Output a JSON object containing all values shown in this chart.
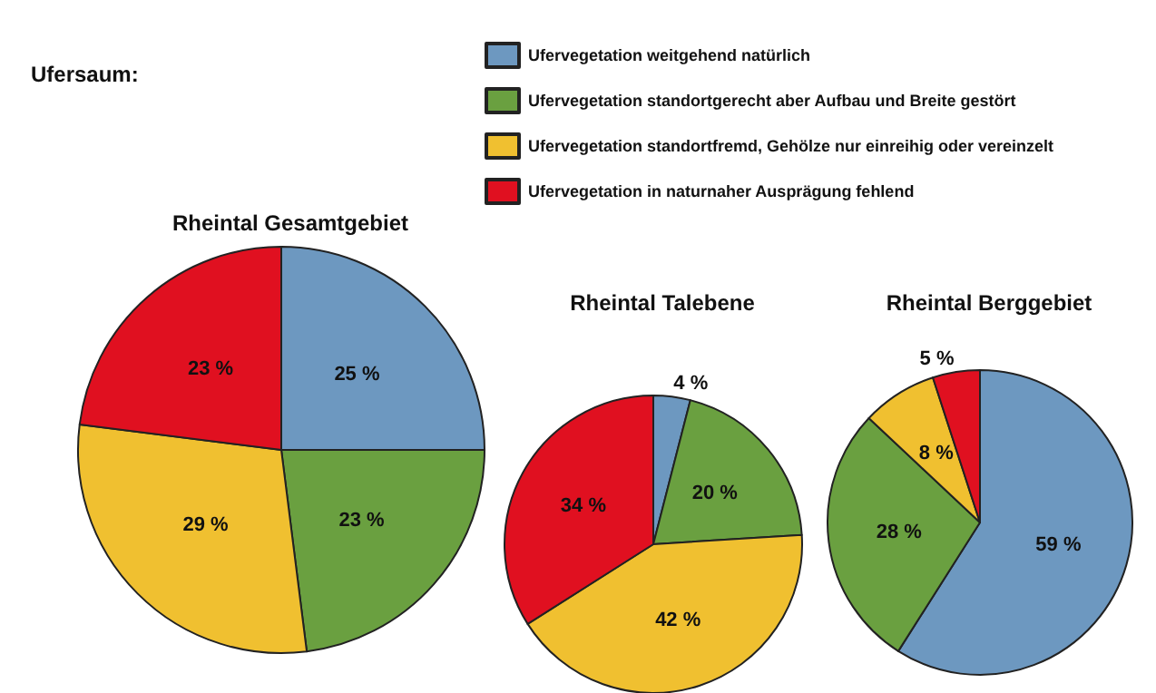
{
  "chart_data": [
    {
      "type": "pie",
      "title": "Rheintal Gesamtgebiet",
      "annotations": [
        "Ufersaum:"
      ],
      "legend": "top right",
      "categories": [
        "Ufervegetation weitgehend natürlich",
        "Ufervegetation standortgerecht aber Aufbau und Breite gestört",
        "Ufervegetation standortfremd, Gehölze nur einreihig oder vereinzelt",
        "Ufervegetation in naturnaher Ausprägung fehlend"
      ],
      "values": [
        25,
        23,
        29,
        23
      ],
      "value_labels": [
        "25 %",
        "23 %",
        "29 %",
        "23 %"
      ],
      "colors": [
        "#6d98c0",
        "#6aa040",
        "#f0c030",
        "#e01020"
      ]
    },
    {
      "type": "pie",
      "title": "Rheintal Talebene",
      "categories": [
        null,
        null,
        null,
        null
      ],
      "values": [
        4,
        20,
        42,
        34
      ],
      "value_labels": [
        "4 %",
        "20 %",
        "42 %",
        "34 %"
      ],
      "colors": [
        "#6d98c0",
        "#6aa040",
        "#f0c030",
        "#e01020"
      ]
    },
    {
      "type": "pie",
      "title": "Rheintal Berggebiet",
      "categories": [
        null,
        null,
        null,
        null
      ],
      "values": [
        59,
        28,
        8,
        5
      ],
      "value_labels": [
        "59 %",
        "28 %",
        "8 %",
        "5 %"
      ],
      "colors": [
        "#6d98c0",
        "#6aa040",
        "#f0c030",
        "#e01020"
      ]
    }
  ]
}
